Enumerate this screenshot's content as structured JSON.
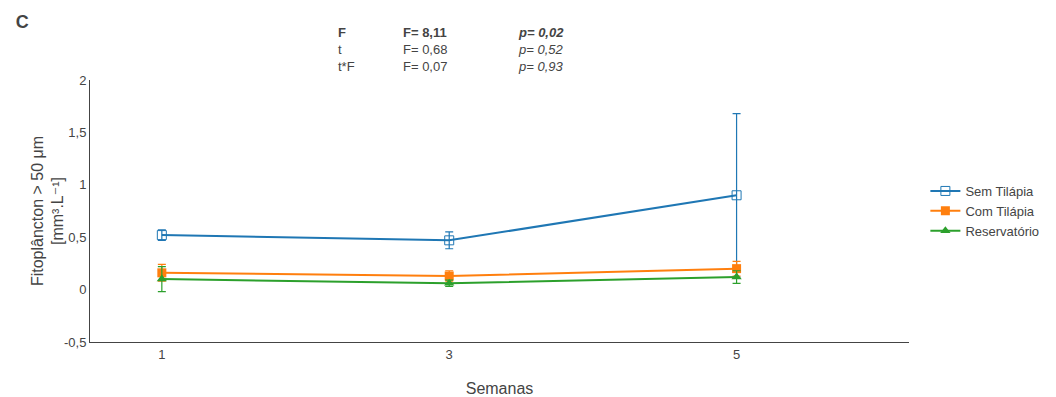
{
  "chart_data": {
    "type": "line",
    "title": "C",
    "xlabel": "Semanas",
    "ylabel": "Fitoplâncton > 50 μm\n[mm³.L⁻¹]",
    "x": [
      1,
      3,
      5
    ],
    "series": [
      {
        "name": "Sem Tilápia",
        "values": [
          0.52,
          0.47,
          0.9
        ],
        "errors": [
          0.05,
          0.08,
          0.78
        ],
        "marker": "square-open"
      },
      {
        "name": "Com Tilápia",
        "values": [
          0.16,
          0.13,
          0.2
        ],
        "errors": [
          0.08,
          0.05,
          0.07
        ],
        "marker": "square"
      },
      {
        "name": "Reservatório",
        "values": [
          0.1,
          0.06,
          0.12
        ],
        "errors": [
          0.12,
          0.03,
          0.06
        ],
        "marker": "triangle-up"
      }
    ],
    "xlim": [
      0.5,
      6.2
    ],
    "xticks": [
      1,
      3,
      5
    ],
    "ylim": [
      -0.5,
      2.0
    ],
    "yticks": [
      {
        "value": -0.5,
        "label": "-0,5"
      },
      0,
      {
        "value": 0.5,
        "label": "0,5"
      },
      1,
      {
        "value": 1.5,
        "label": "1,5"
      },
      2
    ],
    "grid": false,
    "legend": "right",
    "annotations": [
      [
        "F",
        "F= 8,11",
        "p= 0,02"
      ],
      [
        "t",
        "F= 0,68",
        "p= 0,52"
      ],
      [
        "t*F",
        "F= 0,07",
        "p= 0,93"
      ]
    ]
  }
}
